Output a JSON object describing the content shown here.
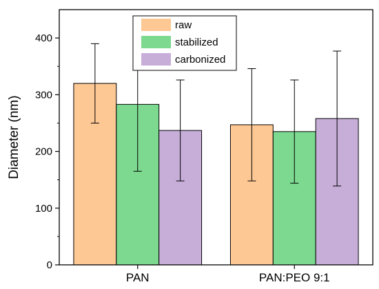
{
  "chart_data": {
    "type": "bar",
    "title": "",
    "xlabel": "",
    "ylabel": "Diameter (nm)",
    "ylim": [
      0,
      450
    ],
    "yticks": [
      0,
      100,
      200,
      300,
      400
    ],
    "categories": [
      "PAN",
      "PAN:PEO 9:1"
    ],
    "series": [
      {
        "name": "raw",
        "color": "#fdc894",
        "values": [
          320,
          247
        ],
        "errors": [
          70,
          99
        ]
      },
      {
        "name": "stabilized",
        "color": "#7cd98f",
        "values": [
          283,
          235
        ],
        "errors": [
          118,
          91
        ]
      },
      {
        "name": "carbonized",
        "color": "#c7aed9",
        "values": [
          237,
          258
        ],
        "errors": [
          89,
          119
        ]
      }
    ],
    "legend": {
      "position": "top-center"
    },
    "grid": false
  }
}
